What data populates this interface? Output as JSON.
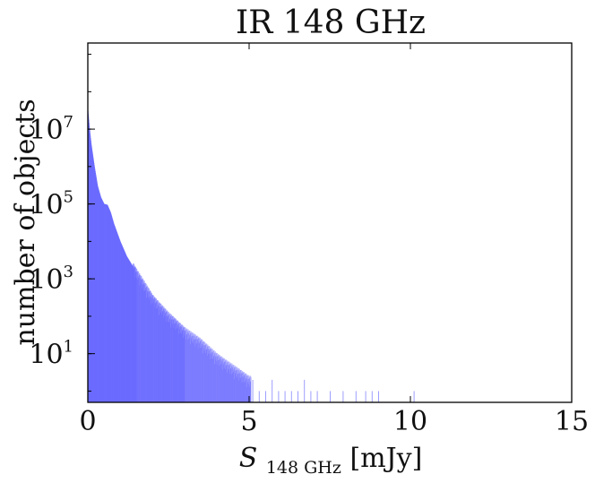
{
  "chart_data": {
    "type": "histogram",
    "title": "IR 148 GHz",
    "xlabel": {
      "main": "S",
      "subscript": "148 GHz",
      "unit": "[mJy]"
    },
    "ylabel": "number of objects",
    "xlim": [
      0,
      15
    ],
    "ylim": [
      0.5,
      2000000000
    ],
    "y_scale": "log",
    "x_ticks": [
      "0",
      "5",
      "10",
      "15"
    ],
    "y_ticks": [
      {
        "base": "10",
        "exp": "1"
      },
      {
        "base": "10",
        "exp": "3"
      },
      {
        "base": "10",
        "exp": "5"
      },
      {
        "base": "10",
        "exp": "7"
      }
    ],
    "bar_color": "#6a6aff",
    "profile": {
      "x": [
        0,
        0.05,
        0.1,
        0.2,
        0.3,
        0.4,
        0.5,
        0.6,
        0.7,
        0.8,
        1.0,
        1.2,
        1.5,
        2.0,
        2.5,
        3.0,
        3.5,
        4.0,
        4.5,
        5.0
      ],
      "y": [
        30000000,
        10000000,
        4000000,
        1000000,
        300000,
        150000,
        100000,
        95000,
        60000,
        30000,
        10000,
        4000,
        1500,
        300,
        100,
        40,
        20,
        8,
        4,
        2
      ]
    },
    "sparse_bins_x": [
      5.1,
      5.3,
      5.5,
      5.7,
      5.9,
      6.1,
      6.3,
      6.5,
      6.7,
      6.9,
      7.1,
      7.5,
      7.9,
      8.3,
      8.6,
      8.8,
      9.0,
      10.1
    ],
    "sparse_bins_y": [
      2,
      1,
      1,
      2,
      1,
      1,
      1,
      1,
      2,
      1,
      1,
      1,
      1,
      1,
      1,
      1,
      1,
      1
    ]
  }
}
